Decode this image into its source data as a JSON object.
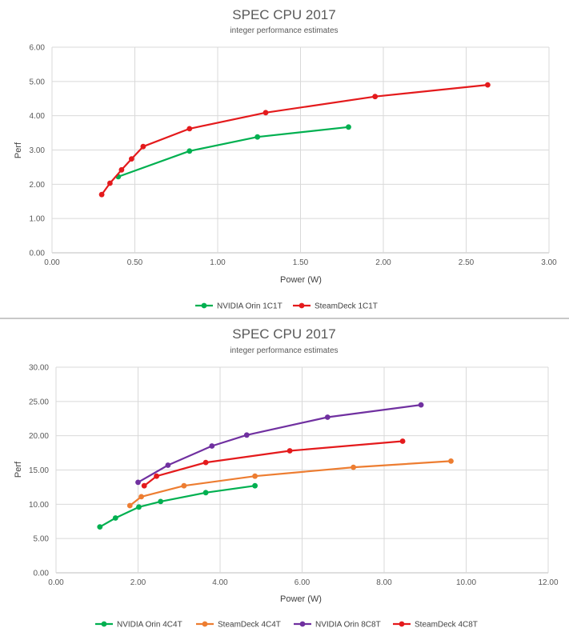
{
  "chart_data": [
    {
      "type": "line",
      "title": "SPEC CPU 2017",
      "subtitle": "integer performance estimates",
      "xlabel": "Power (W)",
      "ylabel": "Perf",
      "xlim": [
        0,
        3
      ],
      "ylim": [
        0,
        6
      ],
      "x_ticks": [
        "0.00",
        "0.50",
        "1.00",
        "1.50",
        "2.00",
        "2.50",
        "3.00"
      ],
      "y_ticks": [
        "0.00",
        "1.00",
        "2.00",
        "3.00",
        "4.00",
        "5.00",
        "6.00"
      ],
      "grid": true,
      "legend_position": "bottom",
      "series": [
        {
          "name": "NVIDIA Orin 1C1T",
          "color": "#00b050",
          "points": [
            [
              0.4,
              2.22
            ],
            [
              0.83,
              2.97
            ],
            [
              1.24,
              3.38
            ],
            [
              1.79,
              3.67
            ]
          ]
        },
        {
          "name": "SteamDeck 1C1T",
          "color": "#e41a1c",
          "points": [
            [
              0.3,
              1.7
            ],
            [
              0.35,
              2.03
            ],
            [
              0.42,
              2.42
            ],
            [
              0.48,
              2.74
            ],
            [
              0.55,
              3.1
            ],
            [
              0.83,
              3.62
            ],
            [
              1.29,
              4.09
            ],
            [
              1.95,
              4.56
            ],
            [
              2.63,
              4.9
            ]
          ]
        }
      ]
    },
    {
      "type": "line",
      "title": "SPEC CPU 2017",
      "subtitle": "integer performance estimates",
      "xlabel": "Power (W)",
      "ylabel": "Perf",
      "xlim": [
        0,
        12
      ],
      "ylim": [
        0,
        30
      ],
      "x_ticks": [
        "0.00",
        "2.00",
        "4.00",
        "6.00",
        "8.00",
        "10.00",
        "12.00"
      ],
      "y_ticks": [
        "0.00",
        "5.00",
        "10.00",
        "15.00",
        "20.00",
        "25.00",
        "30.00"
      ],
      "grid": true,
      "legend_position": "bottom",
      "series": [
        {
          "name": "NVIDIA Orin 4C4T",
          "color": "#00b050",
          "points": [
            [
              1.07,
              6.7
            ],
            [
              1.45,
              8.0
            ],
            [
              2.02,
              9.6
            ],
            [
              2.55,
              10.4
            ],
            [
              3.65,
              11.7
            ],
            [
              4.85,
              12.7
            ]
          ]
        },
        {
          "name": "SteamDeck 4C4T",
          "color": "#ed7d31",
          "points": [
            [
              1.8,
              9.8
            ],
            [
              2.08,
              11.1
            ],
            [
              3.12,
              12.7
            ],
            [
              4.85,
              14.1
            ],
            [
              7.25,
              15.4
            ],
            [
              9.63,
              16.3
            ]
          ]
        },
        {
          "name": "NVIDIA Orin 8C8T",
          "color": "#7030a0",
          "points": [
            [
              2.0,
              13.2
            ],
            [
              2.73,
              15.7
            ],
            [
              3.8,
              18.5
            ],
            [
              4.65,
              20.1
            ],
            [
              6.62,
              22.7
            ],
            [
              8.9,
              24.5
            ]
          ]
        },
        {
          "name": "SteamDeck 4C8T",
          "color": "#e41a1c",
          "points": [
            [
              2.15,
              12.7
            ],
            [
              2.45,
              14.1
            ],
            [
              3.65,
              16.1
            ],
            [
              5.7,
              17.8
            ],
            [
              8.45,
              19.2
            ]
          ]
        }
      ]
    }
  ]
}
